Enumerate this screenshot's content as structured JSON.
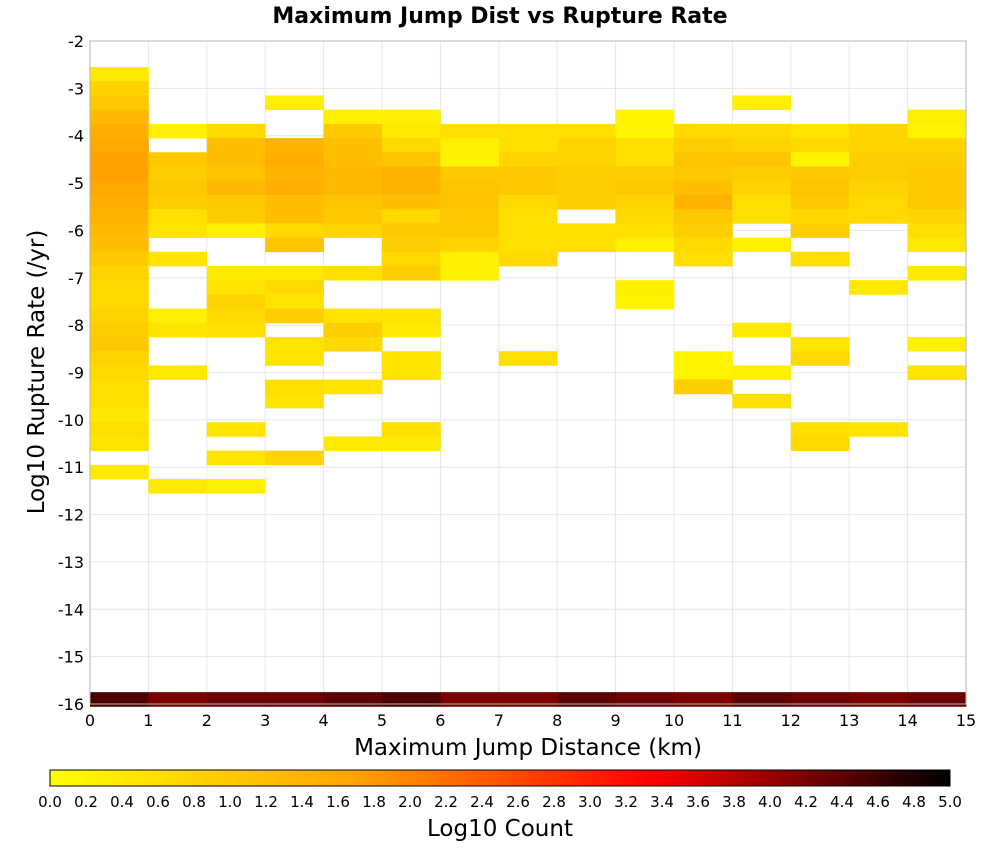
{
  "chart_data": {
    "type": "heatmap",
    "title": "Maximum Jump Dist vs Rupture Rate",
    "xlabel": "Maximum Jump Distance (km)",
    "ylabel": "Log10 Rupture Rate (/yr)",
    "xlim": [
      0,
      15
    ],
    "ylim": [
      -16,
      -2
    ],
    "x_ticks": [
      "0",
      "1",
      "2",
      "3",
      "4",
      "5",
      "6",
      "7",
      "8",
      "9",
      "10",
      "11",
      "12",
      "13",
      "14",
      "15"
    ],
    "y_ticks": [
      "-2",
      "-3",
      "-4",
      "-5",
      "-6",
      "-7",
      "-8",
      "-9",
      "-10",
      "-11",
      "-12",
      "-13",
      "-14",
      "-15",
      "-16"
    ],
    "grid": true,
    "bin_width_x": 1,
    "bin_height_y": 0.3,
    "colorbar": {
      "label": "Log10 Count",
      "min": 0.0,
      "max": 5.0,
      "ticks": [
        "0.0",
        "0.2",
        "0.4",
        "0.6",
        "0.8",
        "1.0",
        "1.2",
        "1.4",
        "1.6",
        "1.8",
        "2.0",
        "2.2",
        "2.4",
        "2.6",
        "2.8",
        "3.0",
        "3.2",
        "3.4",
        "3.6",
        "3.8",
        "4.0",
        "4.2",
        "4.4",
        "4.6",
        "4.8",
        "5.0"
      ],
      "colors": [
        "#ffff00",
        "#ffa500",
        "#ff0000",
        "#000000"
      ]
    },
    "columns": [
      {
        "x": 0,
        "cells": [
          [
            -2.7,
            0.4
          ],
          [
            -3.0,
            0.8
          ],
          [
            -3.3,
            1.0
          ],
          [
            -3.6,
            1.3
          ],
          [
            -3.9,
            1.5
          ],
          [
            -4.2,
            1.6
          ],
          [
            -4.5,
            1.7
          ],
          [
            -4.8,
            1.7
          ],
          [
            -5.1,
            1.6
          ],
          [
            -5.4,
            1.5
          ],
          [
            -5.7,
            1.4
          ],
          [
            -6.0,
            1.3
          ],
          [
            -6.3,
            1.2
          ],
          [
            -6.6,
            1.0
          ],
          [
            -6.9,
            0.8
          ],
          [
            -7.2,
            0.7
          ],
          [
            -7.5,
            0.7
          ],
          [
            -7.8,
            0.8
          ],
          [
            -8.1,
            0.9
          ],
          [
            -8.4,
            1.0
          ],
          [
            -8.7,
            0.8
          ],
          [
            -9.0,
            0.7
          ],
          [
            -9.3,
            0.6
          ],
          [
            -9.6,
            0.6
          ],
          [
            -9.9,
            0.4
          ],
          [
            -10.2,
            0.6
          ],
          [
            -10.5,
            0.5
          ],
          [
            -11.1,
            0.4
          ],
          [
            -15.9,
            4.5
          ]
        ]
      },
      {
        "x": 1,
        "cells": [
          [
            -3.9,
            0.3
          ],
          [
            -4.5,
            1.0
          ],
          [
            -4.8,
            0.9
          ],
          [
            -5.1,
            1.0
          ],
          [
            -5.4,
            0.9
          ],
          [
            -5.7,
            0.6
          ],
          [
            -6.0,
            0.5
          ],
          [
            -6.6,
            0.5
          ],
          [
            -7.8,
            0.3
          ],
          [
            -8.1,
            0.5
          ],
          [
            -9.0,
            0.4
          ],
          [
            -11.4,
            0.4
          ],
          [
            -15.9,
            4.2
          ]
        ]
      },
      {
        "x": 2,
        "cells": [
          [
            -3.9,
            0.7
          ],
          [
            -4.2,
            1.2
          ],
          [
            -4.5,
            1.2
          ],
          [
            -4.8,
            1.1
          ],
          [
            -5.1,
            1.3
          ],
          [
            -5.4,
            1.0
          ],
          [
            -5.7,
            0.9
          ],
          [
            -6.0,
            0.3
          ],
          [
            -6.9,
            0.4
          ],
          [
            -7.2,
            0.5
          ],
          [
            -7.5,
            0.8
          ],
          [
            -7.8,
            0.7
          ],
          [
            -8.1,
            0.6
          ],
          [
            -10.2,
            0.5
          ],
          [
            -10.8,
            0.5
          ],
          [
            -11.4,
            0.3
          ],
          [
            -15.9,
            4.3
          ]
        ]
      },
      {
        "x": 3,
        "cells": [
          [
            -3.3,
            0.3
          ],
          [
            -4.2,
            1.4
          ],
          [
            -4.5,
            1.5
          ],
          [
            -4.8,
            1.4
          ],
          [
            -5.1,
            1.5
          ],
          [
            -5.4,
            1.2
          ],
          [
            -5.7,
            1.2
          ],
          [
            -6.0,
            0.7
          ],
          [
            -6.3,
            1.1
          ],
          [
            -6.9,
            0.4
          ],
          [
            -7.2,
            0.7
          ],
          [
            -7.5,
            0.5
          ],
          [
            -7.8,
            0.9
          ],
          [
            -8.4,
            0.5
          ],
          [
            -8.7,
            0.5
          ],
          [
            -9.3,
            0.6
          ],
          [
            -9.6,
            0.5
          ],
          [
            -10.8,
            0.8
          ],
          [
            -15.9,
            4.3
          ]
        ]
      },
      {
        "x": 4,
        "cells": [
          [
            -3.6,
            0.3
          ],
          [
            -3.9,
            1.0
          ],
          [
            -4.2,
            1.2
          ],
          [
            -4.5,
            1.2
          ],
          [
            -4.8,
            1.3
          ],
          [
            -5.1,
            1.3
          ],
          [
            -5.4,
            1.1
          ],
          [
            -5.7,
            1.0
          ],
          [
            -6.0,
            0.8
          ],
          [
            -6.9,
            0.6
          ],
          [
            -7.8,
            0.5
          ],
          [
            -8.1,
            0.9
          ],
          [
            -8.4,
            0.7
          ],
          [
            -9.3,
            0.5
          ],
          [
            -10.5,
            0.4
          ],
          [
            -15.9,
            4.4
          ]
        ]
      },
      {
        "x": 5,
        "cells": [
          [
            -3.6,
            0.3
          ],
          [
            -3.9,
            0.4
          ],
          [
            -4.2,
            0.7
          ],
          [
            -4.5,
            1.1
          ],
          [
            -4.8,
            1.4
          ],
          [
            -5.1,
            1.4
          ],
          [
            -5.4,
            1.2
          ],
          [
            -5.7,
            0.7
          ],
          [
            -6.0,
            1.0
          ],
          [
            -6.3,
            0.9
          ],
          [
            -6.6,
            0.7
          ],
          [
            -6.9,
            0.9
          ],
          [
            -7.8,
            0.5
          ],
          [
            -8.1,
            0.4
          ],
          [
            -8.7,
            0.5
          ],
          [
            -9.0,
            0.5
          ],
          [
            -10.2,
            0.6
          ],
          [
            -10.5,
            0.4
          ],
          [
            -15.9,
            4.5
          ]
        ]
      },
      {
        "x": 6,
        "cells": [
          [
            -3.9,
            0.6
          ],
          [
            -4.2,
            0.3
          ],
          [
            -4.5,
            0.2
          ],
          [
            -4.8,
            1.0
          ],
          [
            -5.1,
            1.1
          ],
          [
            -5.4,
            1.1
          ],
          [
            -5.7,
            1.0
          ],
          [
            -6.0,
            1.0
          ],
          [
            -6.3,
            0.8
          ],
          [
            -6.6,
            0.3
          ],
          [
            -6.9,
            0.3
          ],
          [
            -15.9,
            4.2
          ]
        ]
      },
      {
        "x": 7,
        "cells": [
          [
            -3.9,
            0.6
          ],
          [
            -4.2,
            0.6
          ],
          [
            -4.5,
            0.8
          ],
          [
            -4.8,
            1.0
          ],
          [
            -5.1,
            1.0
          ],
          [
            -5.4,
            0.7
          ],
          [
            -5.7,
            0.6
          ],
          [
            -6.0,
            0.6
          ],
          [
            -6.3,
            0.6
          ],
          [
            -6.6,
            0.7
          ],
          [
            -8.7,
            0.6
          ],
          [
            -15.9,
            4.2
          ]
        ]
      },
      {
        "x": 8,
        "cells": [
          [
            -3.9,
            0.6
          ],
          [
            -4.2,
            0.8
          ],
          [
            -4.5,
            0.8
          ],
          [
            -4.8,
            0.9
          ],
          [
            -5.1,
            0.9
          ],
          [
            -5.4,
            0.9
          ],
          [
            -6.0,
            0.6
          ],
          [
            -6.3,
            0.6
          ],
          [
            -15.9,
            4.4
          ]
        ]
      },
      {
        "x": 9,
        "cells": [
          [
            -3.6,
            0.2
          ],
          [
            -3.9,
            0.2
          ],
          [
            -4.2,
            0.6
          ],
          [
            -4.5,
            0.6
          ],
          [
            -4.8,
            0.9
          ],
          [
            -5.1,
            1.0
          ],
          [
            -5.4,
            0.8
          ],
          [
            -5.7,
            0.7
          ],
          [
            -6.0,
            0.6
          ],
          [
            -6.3,
            0.3
          ],
          [
            -7.2,
            0.3
          ],
          [
            -7.5,
            0.2
          ],
          [
            -15.9,
            4.3
          ]
        ]
      },
      {
        "x": 10,
        "cells": [
          [
            -3.9,
            0.7
          ],
          [
            -4.2,
            0.9
          ],
          [
            -4.5,
            1.1
          ],
          [
            -4.8,
            1.0
          ],
          [
            -5.1,
            1.2
          ],
          [
            -5.4,
            1.4
          ],
          [
            -5.7,
            1.0
          ],
          [
            -6.0,
            0.9
          ],
          [
            -6.3,
            0.7
          ],
          [
            -6.6,
            0.6
          ],
          [
            -8.7,
            0.2
          ],
          [
            -9.0,
            0.2
          ],
          [
            -9.3,
            0.9
          ],
          [
            -15.9,
            4.2
          ]
        ]
      },
      {
        "x": 11,
        "cells": [
          [
            -3.3,
            0.3
          ],
          [
            -3.9,
            0.7
          ],
          [
            -4.2,
            0.8
          ],
          [
            -4.5,
            1.1
          ],
          [
            -4.8,
            0.9
          ],
          [
            -5.1,
            0.8
          ],
          [
            -5.4,
            0.6
          ],
          [
            -5.7,
            0.6
          ],
          [
            -6.3,
            0.3
          ],
          [
            -8.1,
            0.4
          ],
          [
            -9.0,
            0.3
          ],
          [
            -9.6,
            0.6
          ],
          [
            -15.9,
            4.4
          ]
        ]
      },
      {
        "x": 12,
        "cells": [
          [
            -3.9,
            0.5
          ],
          [
            -4.2,
            0.7
          ],
          [
            -4.5,
            0.2
          ],
          [
            -4.8,
            1.0
          ],
          [
            -5.1,
            1.1
          ],
          [
            -5.4,
            1.0
          ],
          [
            -5.7,
            0.7
          ],
          [
            -6.0,
            0.9
          ],
          [
            -6.6,
            0.6
          ],
          [
            -8.4,
            0.5
          ],
          [
            -8.7,
            0.7
          ],
          [
            -10.2,
            0.6
          ],
          [
            -10.5,
            0.7
          ],
          [
            -15.9,
            4.3
          ]
        ]
      },
      {
        "x": 13,
        "cells": [
          [
            -3.9,
            0.8
          ],
          [
            -4.2,
            0.8
          ],
          [
            -4.5,
            0.9
          ],
          [
            -4.8,
            0.9
          ],
          [
            -5.1,
            0.8
          ],
          [
            -5.4,
            0.7
          ],
          [
            -5.7,
            0.7
          ],
          [
            -7.2,
            0.4
          ],
          [
            -10.2,
            0.5
          ],
          [
            -15.9,
            4.2
          ]
        ]
      },
      {
        "x": 14,
        "cells": [
          [
            -3.6,
            0.3
          ],
          [
            -3.9,
            0.2
          ],
          [
            -4.2,
            0.8
          ],
          [
            -4.5,
            0.9
          ],
          [
            -4.8,
            1.0
          ],
          [
            -5.1,
            1.0
          ],
          [
            -5.4,
            1.0
          ],
          [
            -5.7,
            0.8
          ],
          [
            -6.0,
            0.6
          ],
          [
            -6.3,
            0.4
          ],
          [
            -6.9,
            0.4
          ],
          [
            -8.4,
            0.3
          ],
          [
            -9.0,
            0.5
          ],
          [
            -15.9,
            4.3
          ]
        ]
      }
    ]
  }
}
